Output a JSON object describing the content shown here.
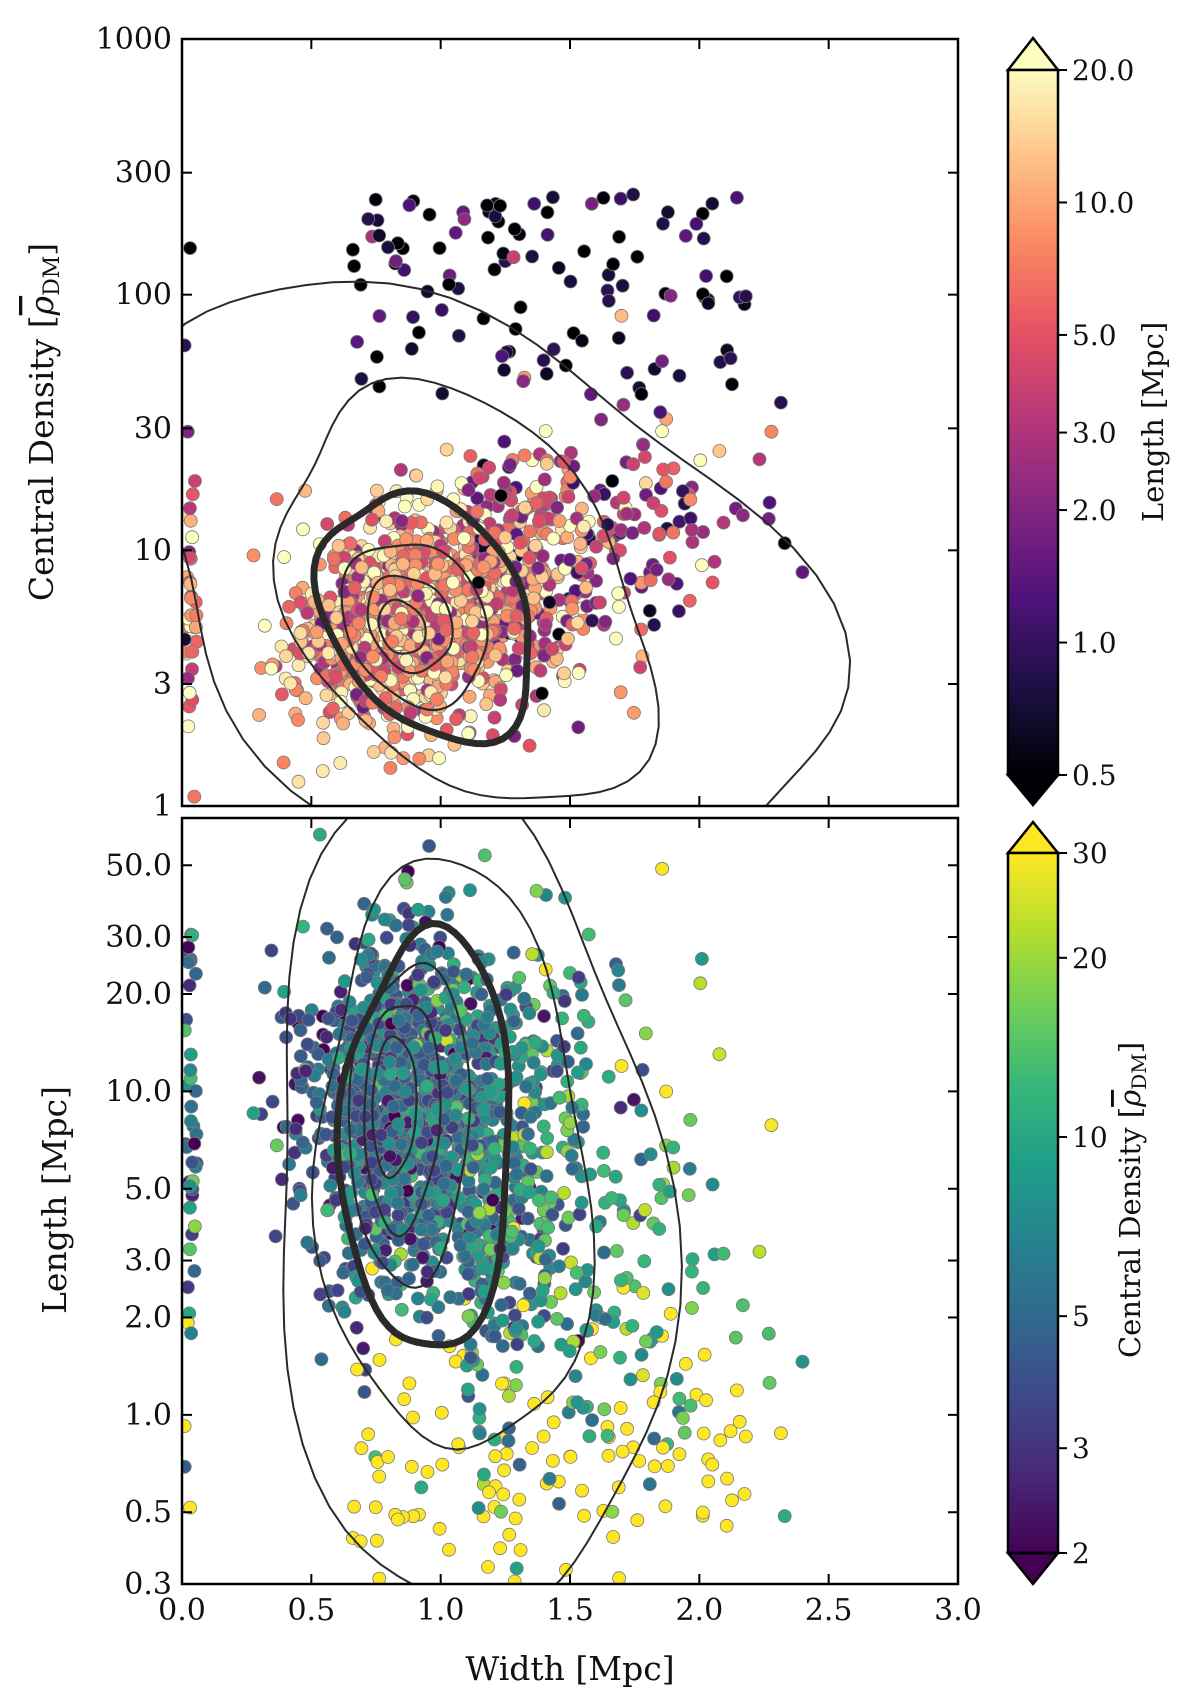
{
  "chart_data": [
    {
      "type": "scatter",
      "panel": "top",
      "xlabel": "",
      "ylabel": "Central Density [",
      "ylabel_symbol": "ρ",
      "ylabel_subscript": "DM",
      "ylabel_close": "]",
      "xlim": [
        0.0,
        3.0
      ],
      "ylim": [
        1,
        1000
      ],
      "yscale": "log",
      "yticks": [
        1,
        3,
        10,
        30,
        100,
        300,
        1000
      ],
      "ytick_labels": [
        "1",
        "3",
        "10",
        "30",
        "100",
        "300",
        "1000"
      ],
      "xticks": [
        0.0,
        0.5,
        1.0,
        1.5,
        2.0,
        2.5,
        3.0
      ],
      "colorbar": {
        "label": "Length [Mpc]",
        "scale": "log",
        "range": [
          0.5,
          20.0
        ],
        "ticks": [
          0.5,
          1.0,
          2.0,
          3.0,
          5.0,
          10.0,
          20.0
        ],
        "tick_labels": [
          "0.5",
          "1.0",
          "2.0",
          "3.0",
          "5.0",
          "10.0",
          "20.0"
        ],
        "colormap": "magma",
        "colormap_stops": [
          "#000004",
          "#1c1044",
          "#4f127b",
          "#812581",
          "#b5367a",
          "#e55064",
          "#fb8761",
          "#fec287",
          "#fcfdbf"
        ]
      },
      "points_summary": "approx. 1800 filaments; dense cloud centred near width 0.85 Mpc, density 5; long tail of short (black) filaments at density 30-1000",
      "contours": [
        {
          "level": "inner",
          "center": [
            0.85,
            5.0
          ]
        },
        {
          "level": "mid",
          "center": [
            0.88,
            5.2
          ]
        },
        {
          "level": "bold",
          "center": [
            0.9,
            5.2
          ]
        },
        {
          "level": "outer-1",
          "center": [
            0.95,
            5.5
          ]
        },
        {
          "level": "outer-2",
          "center": [
            1.1,
            6.5
          ]
        }
      ]
    },
    {
      "type": "scatter",
      "panel": "bottom",
      "xlabel": "Width [Mpc]",
      "ylabel": "Length [Mpc]",
      "xlim": [
        0.0,
        3.0
      ],
      "ylim": [
        0.3,
        70
      ],
      "yscale": "log",
      "yticks": [
        0.3,
        0.5,
        1.0,
        2.0,
        3.0,
        5.0,
        10.0,
        20.0,
        30.0,
        50.0
      ],
      "ytick_labels": [
        "0.3",
        "0.5",
        "1.0",
        "2.0",
        "3.0",
        "5.0",
        "10.0",
        "20.0",
        "30.0",
        "50.0"
      ],
      "xticks": [
        0.0,
        0.5,
        1.0,
        1.5,
        2.0,
        2.5,
        3.0
      ],
      "xtick_labels": [
        "0.0",
        "0.5",
        "1.0",
        "1.5",
        "2.0",
        "2.5",
        "3.0"
      ],
      "colorbar": {
        "label": "Central Density [",
        "label_symbol": "ρ",
        "label_subscript": "DM",
        "label_close": "]",
        "scale": "log",
        "range": [
          2,
          30
        ],
        "ticks": [
          2,
          3,
          5,
          10,
          20,
          30
        ],
        "tick_labels": [
          "2",
          "3",
          "5",
          "10",
          "20",
          "30"
        ],
        "colormap": "viridis",
        "colormap_stops": [
          "#440154",
          "#482878",
          "#3e4989",
          "#31688e",
          "#26828e",
          "#1f9e89",
          "#35b779",
          "#6ece58",
          "#b5de2b",
          "#fde725"
        ]
      },
      "points_summary": "approx. 1800 filaments; dense cloud centred near width 0.8 Mpc, length 8 Mpc; sparse points out to width 2.9 Mpc",
      "contours": [
        {
          "level": "inner",
          "center": [
            0.82,
            9.0
          ]
        },
        {
          "level": "mid",
          "center": [
            0.85,
            8.5
          ]
        },
        {
          "level": "bold",
          "center": [
            0.88,
            8.0
          ]
        },
        {
          "level": "outer-1",
          "center": [
            0.95,
            7.0
          ]
        },
        {
          "level": "outer-2",
          "center": [
            1.05,
            6.0
          ]
        }
      ]
    }
  ]
}
